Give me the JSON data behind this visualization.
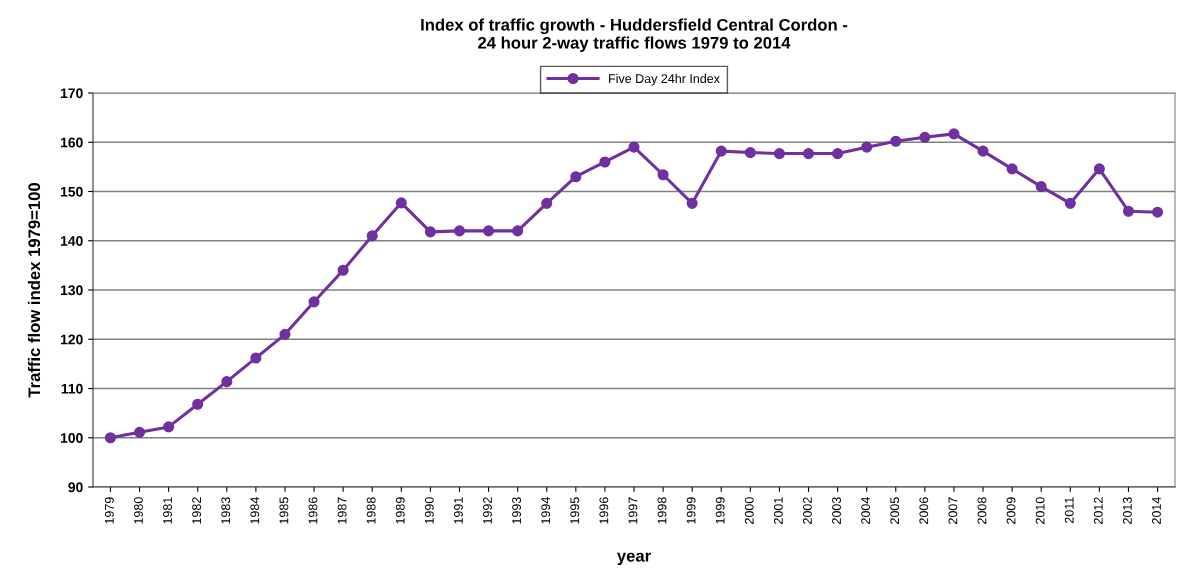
{
  "chart_data": {
    "type": "line",
    "title": "Index of traffic growth - Huddersfield Central Cordon -\n24 hour 2-way traffic flows 1979 to 2014",
    "xlabel": "year",
    "ylabel": "Traffic flow index 1979=100",
    "categories": [
      "1979",
      "1980",
      "1981",
      "1982",
      "1983",
      "1984",
      "1985",
      "1986",
      "1987",
      "1988",
      "1989",
      "1990",
      "1991",
      "1992",
      "1993",
      "1994",
      "1995",
      "1996",
      "1997",
      "1998",
      "1999",
      "1999",
      "2000",
      "2001",
      "2002",
      "2003",
      "2004",
      "2005",
      "2006",
      "2007",
      "2008",
      "2009",
      "2010",
      "2011",
      "2012",
      "2013",
      "2014"
    ],
    "series": [
      {
        "name": "Five Day 24hr Index",
        "color": "#7030a0",
        "values": [
          100,
          101.1,
          102.2,
          106.8,
          111.4,
          116.2,
          121,
          127.6,
          134,
          141,
          147.7,
          141.8,
          142,
          142,
          142,
          147.6,
          153,
          156,
          159,
          153.4,
          147.6,
          158.2,
          157.9,
          157.7,
          157.7,
          157.7,
          159,
          160.2,
          161,
          161.7,
          158.2,
          154.6,
          151,
          147.6,
          154.6,
          146,
          145.8
        ]
      }
    ],
    "ylim": [
      90,
      170
    ],
    "yticks": [
      90,
      100,
      110,
      120,
      130,
      140,
      150,
      160,
      170
    ],
    "grid": "y",
    "legend": "top",
    "marker": "circle",
    "line_style": "solid"
  }
}
